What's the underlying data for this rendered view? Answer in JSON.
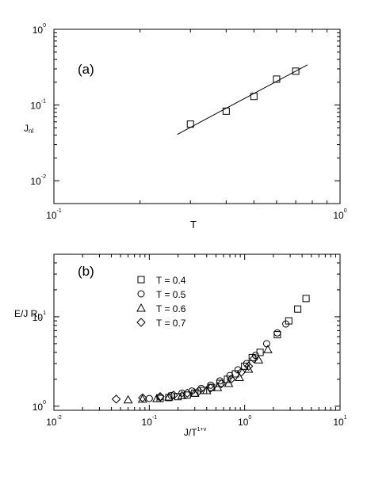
{
  "chart_data": [
    {
      "panel": "(a)",
      "type": "scatter",
      "xscale": "log",
      "yscale": "log",
      "xlim": [
        0.1,
        1.0
      ],
      "ylim": [
        0.005,
        1.0
      ],
      "xlabel": "T",
      "ylabel": "J",
      "ylabel_sub": "nl",
      "x_ticks": [
        {
          "base": "10",
          "exp": "-1"
        },
        {
          "base": "10",
          "exp": "0"
        }
      ],
      "y_ticks": [
        {
          "base": "10",
          "exp": "0"
        },
        {
          "base": "10",
          "exp": "-1"
        },
        {
          "base": "10",
          "exp": "-2"
        }
      ],
      "series": [
        {
          "marker": "square",
          "x": [
            0.3,
            0.4,
            0.5,
            0.6,
            0.7
          ],
          "y": [
            0.056,
            0.083,
            0.13,
            0.22,
            0.28
          ]
        }
      ],
      "fit_line": {
        "x": [
          0.27,
          0.77
        ],
        "y": [
          0.041,
          0.34
        ]
      }
    },
    {
      "panel": "(b)",
      "type": "scatter",
      "xscale": "log",
      "yscale": "log",
      "xlim": [
        0.01,
        10
      ],
      "ylim": [
        0.9,
        50
      ],
      "xlabel": "J/T",
      "xlabel_sup": "1+ν ",
      "ylabel": "E/J R",
      "ylabel_sub": "L",
      "x_ticks": [
        {
          "base": "10",
          "exp": "-2"
        },
        {
          "base": "10",
          "exp": "-1"
        },
        {
          "base": "10",
          "exp": "0"
        },
        {
          "base": "10",
          "exp": "1"
        }
      ],
      "y_ticks": [
        {
          "base": "10",
          "exp": "1"
        },
        {
          "base": "10",
          "exp": "0"
        }
      ],
      "legend_position": "top-left",
      "series": [
        {
          "name": "T = 0.4",
          "marker": "square",
          "x": [
            0.13,
            0.16,
            0.2,
            0.25,
            0.3,
            0.37,
            0.45,
            0.55,
            0.66,
            0.8,
            1.0,
            1.2,
            1.45,
            2.2,
            2.9,
            3.6,
            4.4
          ],
          "y": [
            1.22,
            1.25,
            1.28,
            1.33,
            1.4,
            1.5,
            1.62,
            1.8,
            2.0,
            2.3,
            2.8,
            3.5,
            4.0,
            6.3,
            9.0,
            12.2,
            16
          ]
        },
        {
          "name": "T = 0.5",
          "marker": "circle",
          "x": [
            0.1,
            0.13,
            0.17,
            0.22,
            0.28,
            0.35,
            0.44,
            0.55,
            0.7,
            0.85,
            1.05,
            1.3,
            1.7,
            2.2,
            2.7
          ],
          "y": [
            1.22,
            1.26,
            1.32,
            1.4,
            1.48,
            1.58,
            1.72,
            1.92,
            2.2,
            2.55,
            3.0,
            3.7,
            5.0,
            6.6,
            8.3
          ]
        },
        {
          "name": "T = 0.6",
          "marker": "triangle",
          "x": [
            0.06,
            0.085,
            0.12,
            0.16,
            0.22,
            0.3,
            0.4,
            0.52,
            0.68,
            0.88,
            1.1,
            1.4,
            1.75
          ],
          "y": [
            1.18,
            1.2,
            1.22,
            1.27,
            1.32,
            1.4,
            1.5,
            1.62,
            1.8,
            2.1,
            2.6,
            3.3,
            4.3
          ]
        },
        {
          "name": "T = 0.7",
          "marker": "diamond",
          "x": [
            0.045,
            0.085,
            0.13,
            0.18,
            0.25,
            0.33,
            0.44,
            0.57,
            0.72,
            0.92,
            1.1,
            1.25
          ],
          "y": [
            1.2,
            1.24,
            1.28,
            1.33,
            1.4,
            1.48,
            1.6,
            1.78,
            2.0,
            2.4,
            2.8,
            3.4
          ]
        }
      ]
    }
  ]
}
